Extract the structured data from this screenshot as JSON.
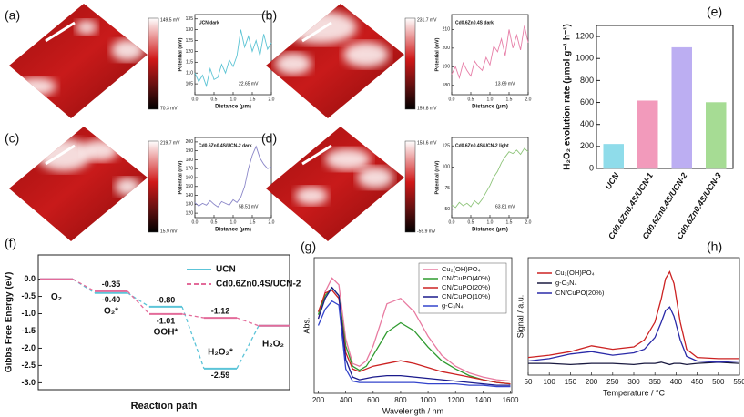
{
  "chart_data": [
    {
      "type": "line",
      "label": "(a)",
      "title": "UCN dark",
      "annotation": "22.65 mV",
      "colorbar_labels": [
        "149.5 mV",
        "70.3 mV"
      ],
      "x_label": "Distance (μm)",
      "y_label": "Potential (mV)",
      "color": "#5cc4d4",
      "x": [
        0,
        0.1,
        0.2,
        0.3,
        0.4,
        0.5,
        0.6,
        0.7,
        0.8,
        0.9,
        1,
        1.1,
        1.2,
        1.3,
        1.4,
        1.5,
        1.6,
        1.7,
        1.8,
        1.9,
        2
      ],
      "values": [
        110,
        106,
        109,
        104,
        112,
        107,
        108,
        114,
        110,
        116,
        113,
        118,
        130,
        122,
        127,
        120,
        125,
        118,
        128,
        121,
        124
      ],
      "xlim": [
        0,
        2
      ],
      "xticks": [
        {
          "value": 0,
          "label": "0.0"
        },
        0.5,
        {
          "value": 1,
          "label": "1.0"
        },
        1.5,
        {
          "value": 2,
          "label": "2.0"
        }
      ],
      "ylim": [
        100,
        137
      ],
      "yticks": [
        105,
        110,
        115,
        120,
        125,
        130,
        135
      ]
    },
    {
      "type": "line",
      "label": "(b)",
      "title": "Cd0.6Zn0.4S dark",
      "annotation": "13.69 mV",
      "colorbar_labels": [
        "231.7 mV",
        "159.8 mV"
      ],
      "x_label": "Distance (μm)",
      "y_label": "Potential (mV)",
      "color": "#e77fa8",
      "x": [
        0,
        0.1,
        0.2,
        0.3,
        0.4,
        0.5,
        0.6,
        0.7,
        0.8,
        0.9,
        1,
        1.1,
        1.2,
        1.3,
        1.4,
        1.5,
        1.6,
        1.7,
        1.8,
        1.9,
        2
      ],
      "values": [
        186,
        190,
        184,
        192,
        188,
        185,
        193,
        190,
        188,
        195,
        191,
        201,
        198,
        205,
        196,
        210,
        200,
        207,
        199,
        212,
        203
      ],
      "xlim": [
        0,
        2
      ],
      "xticks": [
        {
          "value": 0,
          "label": "0.0"
        },
        0.5,
        {
          "value": 1,
          "label": "1.0"
        },
        1.5,
        {
          "value": 2,
          "label": "2.0"
        }
      ],
      "ylim": [
        175,
        218
      ],
      "yticks": [
        180,
        190,
        200,
        210
      ]
    },
    {
      "type": "line",
      "label": "(c)",
      "title": "Cd0.6Zn0.4S/UCN-2 dark",
      "annotation": "58.51 mV",
      "colorbar_labels": [
        "219.7 mV",
        "15.9 mV"
      ],
      "x_label": "Distance (μm)",
      "y_label": "Potential (mV)",
      "color": "#8a86c8",
      "x": [
        0,
        0.1,
        0.2,
        0.3,
        0.4,
        0.5,
        0.6,
        0.7,
        0.8,
        0.9,
        1,
        1.1,
        1.2,
        1.3,
        1.4,
        1.5,
        1.6,
        1.7,
        1.8,
        1.9,
        2
      ],
      "values": [
        132,
        128,
        131,
        129,
        134,
        130,
        127,
        133,
        131,
        129,
        135,
        132,
        138,
        150,
        170,
        185,
        195,
        182,
        175,
        170,
        172
      ],
      "xlim": [
        0,
        2
      ],
      "xticks": [
        {
          "value": 0,
          "label": "0.0"
        },
        0.5,
        {
          "value": 1,
          "label": "1.0"
        },
        1.5,
        {
          "value": 2,
          "label": "2.0"
        }
      ],
      "ylim": [
        115,
        205
      ],
      "yticks": [
        120,
        130,
        140,
        150,
        160,
        170,
        180,
        190,
        200
      ]
    },
    {
      "type": "line",
      "label": "(d)",
      "title": "Cd0.6Zn0.4S/UCN-2 light",
      "annotation": "63.81 mV",
      "colorbar_labels": [
        "153.6 mV",
        "-55.9 mV"
      ],
      "x_label": "Distance (μm)",
      "y_label": "Potential (mV)",
      "color": "#8ec47a",
      "x": [
        0,
        0.1,
        0.2,
        0.3,
        0.4,
        0.5,
        0.6,
        0.7,
        0.8,
        0.9,
        1,
        1.1,
        1.2,
        1.3,
        1.4,
        1.5,
        1.6,
        1.7,
        1.8,
        1.9,
        2
      ],
      "values": [
        55,
        52,
        58,
        54,
        57,
        53,
        60,
        56,
        62,
        70,
        78,
        88,
        95,
        105,
        112,
        118,
        116,
        120,
        115,
        122,
        118
      ],
      "xlim": [
        0,
        2
      ],
      "xticks": [
        {
          "value": 0,
          "label": "0.0"
        },
        0.5,
        {
          "value": 1,
          "label": "1.0"
        },
        1.5,
        {
          "value": 2,
          "label": "2.0"
        }
      ],
      "ylim": [
        40,
        135
      ],
      "yticks": [
        50,
        75,
        100,
        125
      ]
    },
    {
      "type": "bar",
      "label": "(e)",
      "y_label": "H₂O₂ evolution rate (μmol g⁻¹ h⁻¹)",
      "categories": [
        "UCN",
        "Cd0.6Zn0.4S/UCN-1",
        "Cd0.6Zn0.4S/UCN-2",
        "Cd0.6Zn0.4S/UCN-3"
      ],
      "values": [
        220,
        615,
        1100,
        600
      ],
      "colors": [
        "#8fdcea",
        "#f29abb",
        "#bcaef2",
        "#a6dc94"
      ],
      "ylim": [
        0,
        1300
      ],
      "yticks": [
        0,
        200,
        400,
        600,
        800,
        1000,
        1200
      ]
    },
    {
      "type": "energy",
      "label": "(f)",
      "x_label": "Reaction path",
      "y_label": "Gibbs Free Energy (eV)",
      "categories": [
        "O₂",
        "O₂*",
        "OOH*",
        "H₂O₂*",
        "H₂O₂"
      ],
      "series": [
        {
          "name": "UCN",
          "color": "#5cc4d8",
          "values": [
            0,
            -0.4,
            -0.8,
            -2.59,
            -1.35
          ],
          "value_labels": [
            null,
            "-0.40",
            "-0.80",
            "-2.59",
            null
          ]
        },
        {
          "name": "Cd0.6Zn0.4S/UCN-2",
          "color": "#e36b9a",
          "values": [
            0,
            -0.35,
            -1.01,
            -1.12,
            -1.35
          ],
          "value_labels": [
            null,
            "-0.35",
            "-1.01",
            "-1.12",
            null
          ]
        }
      ],
      "ylim": [
        -3.2,
        0.7
      ],
      "yticks": [
        {
          "value": 0,
          "label": "0.0"
        },
        -0.5,
        {
          "value": -1,
          "label": "-1.0"
        },
        -1.5,
        {
          "value": -2,
          "label": "-2.0"
        },
        -2.5,
        {
          "value": -3,
          "label": "-3.0"
        }
      ]
    },
    {
      "type": "line",
      "label": "(g)",
      "x_label": "Wavelength / nm",
      "y_label": "Abs.",
      "x": [
        200,
        250,
        300,
        350,
        400,
        450,
        500,
        550,
        600,
        700,
        800,
        900,
        1000,
        1100,
        1200,
        1300,
        1400,
        1500,
        1600
      ],
      "series": [
        {
          "name": "Cu₂(OH)PO₄",
          "color": "#e87aa0",
          "values": [
            0.55,
            0.75,
            0.85,
            0.8,
            0.4,
            0.22,
            0.2,
            0.24,
            0.35,
            0.66,
            0.7,
            0.6,
            0.42,
            0.28,
            0.2,
            0.15,
            0.12,
            0.1,
            0.09
          ]
        },
        {
          "name": "CN/CuPO(40%)",
          "color": "#2e9a2e",
          "values": [
            0.58,
            0.72,
            0.78,
            0.72,
            0.35,
            0.2,
            0.17,
            0.2,
            0.28,
            0.45,
            0.52,
            0.46,
            0.34,
            0.24,
            0.18,
            0.13,
            0.1,
            0.08,
            0.07
          ]
        },
        {
          "name": "CN/CuPO(20%)",
          "color": "#cc2222",
          "values": [
            0.6,
            0.74,
            0.76,
            0.7,
            0.3,
            0.18,
            0.16,
            0.18,
            0.2,
            0.22,
            0.24,
            0.22,
            0.19,
            0.16,
            0.14,
            0.12,
            0.1,
            0.08,
            0.07
          ]
        },
        {
          "name": "CN/CuPO(10%)",
          "color": "#1a1a8c",
          "values": [
            0.55,
            0.7,
            0.78,
            0.72,
            0.25,
            0.12,
            0.1,
            0.11,
            0.12,
            0.13,
            0.13,
            0.12,
            0.11,
            0.1,
            0.09,
            0.08,
            0.07,
            0.06,
            0.06
          ]
        },
        {
          "name": "g-C₃N₄",
          "color": "#3344cc",
          "values": [
            0.5,
            0.62,
            0.68,
            0.65,
            0.18,
            0.09,
            0.08,
            0.08,
            0.08,
            0.08,
            0.08,
            0.08,
            0.07,
            0.07,
            0.07,
            0.06,
            0.06,
            0.05,
            0.05
          ]
        }
      ],
      "xlim": [
        170,
        1610
      ],
      "xticks": [
        200,
        400,
        600,
        800,
        1000,
        1200,
        1400,
        1600
      ],
      "ylim": [
        0,
        1
      ]
    },
    {
      "type": "line",
      "label": "(h)",
      "x_label": "Temperature / °C",
      "y_label": "Signal / a.u.",
      "x": [
        50,
        100,
        150,
        200,
        250,
        300,
        325,
        350,
        365,
        375,
        385,
        395,
        410,
        425,
        450,
        500,
        550
      ],
      "series": [
        {
          "name": "Cu₂(OH)PO₄",
          "color": "#cc2222",
          "values": [
            0.15,
            0.17,
            0.2,
            0.25,
            0.22,
            0.24,
            0.3,
            0.45,
            0.65,
            0.82,
            0.88,
            0.78,
            0.45,
            0.22,
            0.15,
            0.14,
            0.14
          ]
        },
        {
          "name": "g-C₃N₄",
          "color": "#1a1a40",
          "values": [
            0.1,
            0.1,
            0.09,
            0.1,
            0.1,
            0.09,
            0.1,
            0.1,
            0.11,
            0.1,
            0.09,
            0.1,
            0.1,
            0.09,
            0.1,
            0.11,
            0.1
          ]
        },
        {
          "name": "CN/CuPO(20%)",
          "color": "#2a2aa8",
          "values": [
            0.12,
            0.14,
            0.18,
            0.2,
            0.17,
            0.19,
            0.22,
            0.32,
            0.45,
            0.55,
            0.58,
            0.5,
            0.3,
            0.16,
            0.12,
            0.11,
            0.12
          ]
        }
      ],
      "xlim": [
        50,
        550
      ],
      "xticks": [
        50,
        100,
        150,
        200,
        250,
        300,
        350,
        400,
        450,
        500,
        550
      ],
      "ylim": [
        0,
        1
      ]
    }
  ]
}
